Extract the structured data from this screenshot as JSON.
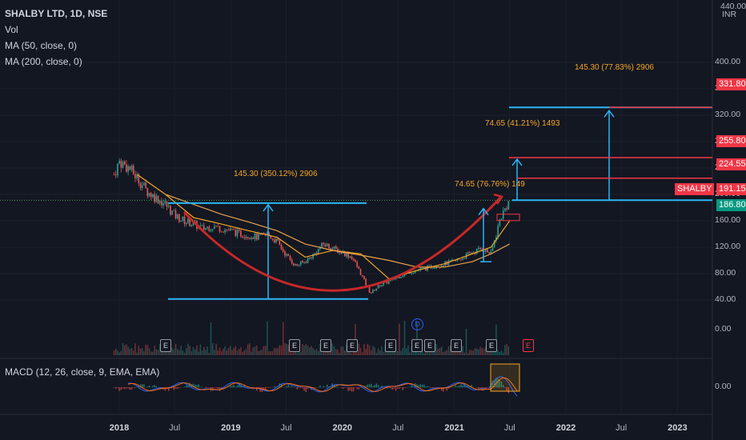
{
  "legend": {
    "title": "SHALBY LTD, 1D, NSE",
    "vol": "Vol",
    "ma50": "MA (50, close, 0)",
    "ma200": "MA (200, close, 0)",
    "macd": "MACD (12, 26, close, 9, EMA, EMA)"
  },
  "currency": "INR",
  "price_axis": {
    "top_partial": "440.00",
    "ticks": [
      "400.00",
      "360.00",
      "320.00",
      "280.00",
      "240.00",
      "200.00",
      "160.00",
      "120.00",
      "80.00",
      "40.00"
    ]
  },
  "volume_axis_label": "0.00",
  "macd_axis_label": "0.00",
  "time_axis": [
    {
      "label": "2018",
      "year": true
    },
    {
      "label": "Jul",
      "year": false
    },
    {
      "label": "2019",
      "year": true
    },
    {
      "label": "Jul",
      "year": false
    },
    {
      "label": "2020",
      "year": true
    },
    {
      "label": "Jul",
      "year": false
    },
    {
      "label": "2021",
      "year": true
    },
    {
      "label": "Jul",
      "year": false
    },
    {
      "label": "2022",
      "year": true
    },
    {
      "label": "Jul",
      "year": false
    },
    {
      "label": "2023",
      "year": true
    }
  ],
  "price_tags": [
    {
      "text": "331.80",
      "color": "#f23645"
    },
    {
      "text": "255.80",
      "color": "#f23645"
    },
    {
      "text": "224.55",
      "color": "#f23645"
    },
    {
      "text": "191.15",
      "color": "#f23645"
    },
    {
      "text": "186.80",
      "color": "#089981"
    }
  ],
  "symbol_tag": "SHALBY",
  "annotations": {
    "cup_depth": "145.30 (350.12%) 2906",
    "target_big": "145.30 (77.83%) 2906",
    "target_small": "74.65 (41.21%) 1493",
    "handle_move": "74.65 (76.76%) 149"
  },
  "events": {
    "earnings": [
      "E",
      "E",
      "E",
      "E",
      "E",
      "E",
      "E",
      "E",
      "E"
    ],
    "earnings_upcoming": "E",
    "dividend": "D"
  },
  "colors": {
    "background": "#131722",
    "candle_up": "#26a69a",
    "candle_down": "#ef5350",
    "ma50": "#f5a623",
    "ma200": "#e8a24a",
    "cup_curve": "#c62828",
    "measure": "#29b6f6",
    "target_lines": "#f23645",
    "macd_line": "#2962ff",
    "signal_line": "#ff6d00"
  },
  "chart_data": {
    "type": "candlestick",
    "title": "SHALBY LTD, 1D, NSE",
    "x_range": [
      "2017-12",
      "2023-02"
    ],
    "ylim": [
      0,
      440
    ],
    "close_series": {
      "dates": [
        "2017-12-15",
        "2018-01-01",
        "2018-02-01",
        "2018-03-01",
        "2018-04-01",
        "2018-05-01",
        "2018-06-01",
        "2018-07-01",
        "2018-08-01",
        "2018-09-01",
        "2018-10-01",
        "2018-11-01",
        "2018-12-01",
        "2019-01-01",
        "2019-02-01",
        "2019-03-01",
        "2019-04-01",
        "2019-05-01",
        "2019-06-01",
        "2019-07-01",
        "2019-08-01",
        "2019-09-01",
        "2019-10-01",
        "2019-11-01",
        "2019-12-01",
        "2020-01-01",
        "2020-02-01",
        "2020-03-01",
        "2020-04-01",
        "2020-05-01",
        "2020-06-01",
        "2020-07-01",
        "2020-08-01",
        "2020-09-01",
        "2020-10-01",
        "2020-11-01",
        "2020-12-01",
        "2021-01-01",
        "2021-02-01",
        "2021-03-01",
        "2021-04-01",
        "2021-05-01",
        "2021-06-01",
        "2021-07-01"
      ],
      "values": [
        230,
        250,
        240,
        225,
        205,
        195,
        185,
        168,
        160,
        155,
        148,
        152,
        148,
        145,
        140,
        138,
        135,
        140,
        128,
        108,
        92,
        98,
        110,
        125,
        118,
        112,
        105,
        80,
        50,
        62,
        68,
        75,
        82,
        85,
        88,
        92,
        95,
        98,
        105,
        112,
        118,
        110,
        165,
        191
      ]
    },
    "ma50": {
      "dates": [
        "2018-03-01",
        "2018-06-01",
        "2018-09-01",
        "2018-12-01",
        "2019-03-01",
        "2019-06-01",
        "2019-09-01",
        "2019-12-01",
        "2020-03-01",
        "2020-06-01",
        "2020-09-01",
        "2020-12-01",
        "2021-03-01",
        "2021-05-01",
        "2021-07-01"
      ],
      "values": [
        230,
        200,
        165,
        155,
        145,
        135,
        105,
        115,
        110,
        72,
        85,
        95,
        110,
        120,
        160
      ]
    },
    "ma200": {
      "dates": [
        "2018-06-01",
        "2018-09-01",
        "2018-12-01",
        "2019-03-01",
        "2019-06-01",
        "2019-09-01",
        "2019-12-01",
        "2020-03-01",
        "2020-06-01",
        "2020-09-01",
        "2020-12-01",
        "2021-03-01",
        "2021-05-01",
        "2021-07-01"
      ],
      "values": [
        200,
        185,
        170,
        158,
        145,
        125,
        115,
        108,
        100,
        90,
        90,
        98,
        110,
        125
      ]
    },
    "drawings": {
      "cup_top_level": 186.8,
      "cup_bottom_level": 41.5,
      "targets": [
        331.8,
        255.8,
        224.55
      ],
      "last_price": 191.15
    }
  }
}
